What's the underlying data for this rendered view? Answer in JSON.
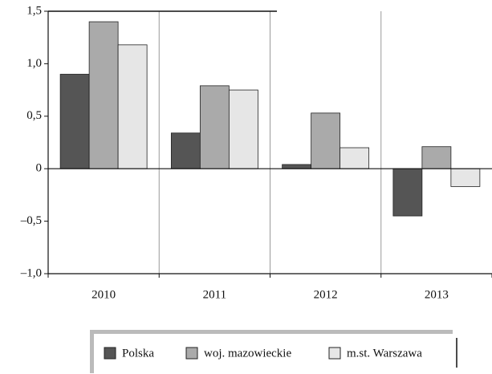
{
  "chart_data": {
    "type": "bar",
    "categories": [
      "2010",
      "2011",
      "2012",
      "2013"
    ],
    "series": [
      {
        "name": "Polska",
        "color": "#555555",
        "values": [
          0.9,
          0.34,
          0.04,
          -0.45
        ]
      },
      {
        "name": "woj. mazowieckie",
        "color": "#aaaaaa",
        "values": [
          1.4,
          0.79,
          0.53,
          0.21
        ]
      },
      {
        "name": "m.st. Warszawa",
        "color": "#e6e6e6",
        "values": [
          1.18,
          0.75,
          0.2,
          -0.17
        ]
      }
    ],
    "ylim": [
      -1.0,
      1.5
    ],
    "yticks": [
      {
        "value": -1.0,
        "label": "–1,0"
      },
      {
        "value": -0.5,
        "label": "–0,5"
      },
      0,
      {
        "value": 0.5,
        "label": "0,5"
      },
      {
        "value": 1.0,
        "label": "1,0"
      },
      {
        "value": 1.5,
        "label": "1,5"
      }
    ],
    "legend": "bottom"
  }
}
